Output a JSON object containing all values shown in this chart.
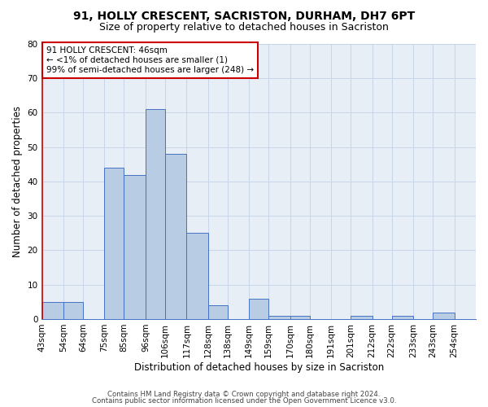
{
  "title": "91, HOLLY CRESCENT, SACRISTON, DURHAM, DH7 6PT",
  "subtitle": "Size of property relative to detached houses in Sacriston",
  "xlabel": "Distribution of detached houses by size in Sacriston",
  "ylabel": "Number of detached properties",
  "bin_labels": [
    "43sqm",
    "54sqm",
    "64sqm",
    "75sqm",
    "85sqm",
    "96sqm",
    "106sqm",
    "117sqm",
    "128sqm",
    "138sqm",
    "149sqm",
    "159sqm",
    "170sqm",
    "180sqm",
    "191sqm",
    "201sqm",
    "212sqm",
    "222sqm",
    "233sqm",
    "243sqm",
    "254sqm"
  ],
  "bin_edges": [
    43,
    54,
    64,
    75,
    85,
    96,
    106,
    117,
    128,
    138,
    149,
    159,
    170,
    180,
    191,
    201,
    212,
    222,
    233,
    243,
    254
  ],
  "counts": [
    5,
    5,
    0,
    44,
    42,
    61,
    48,
    25,
    4,
    0,
    6,
    1,
    1,
    0,
    0,
    1,
    0,
    1,
    0,
    2,
    0
  ],
  "bar_color": "#b8cce4",
  "bar_edge_color": "#4472c4",
  "left_spine_color": "#cc0000",
  "ylim": [
    0,
    80
  ],
  "yticks": [
    0,
    10,
    20,
    30,
    40,
    50,
    60,
    70,
    80
  ],
  "grid_color": "#c8d4e8",
  "bg_color": "#e8eef6",
  "annotation_text": "91 HOLLY CRESCENT: 46sqm\n← <1% of detached houses are smaller (1)\n99% of semi-detached houses are larger (248) →",
  "annotation_box_color": "#ffffff",
  "annotation_border_color": "#cc0000",
  "footer_line1": "Contains HM Land Registry data © Crown copyright and database right 2024.",
  "footer_line2": "Contains public sector information licensed under the Open Government Licence v3.0.",
  "title_fontsize": 10,
  "subtitle_fontsize": 9,
  "tick_fontsize": 7.5,
  "ylabel_fontsize": 8.5,
  "xlabel_fontsize": 8.5,
  "annotation_fontsize": 7.5
}
